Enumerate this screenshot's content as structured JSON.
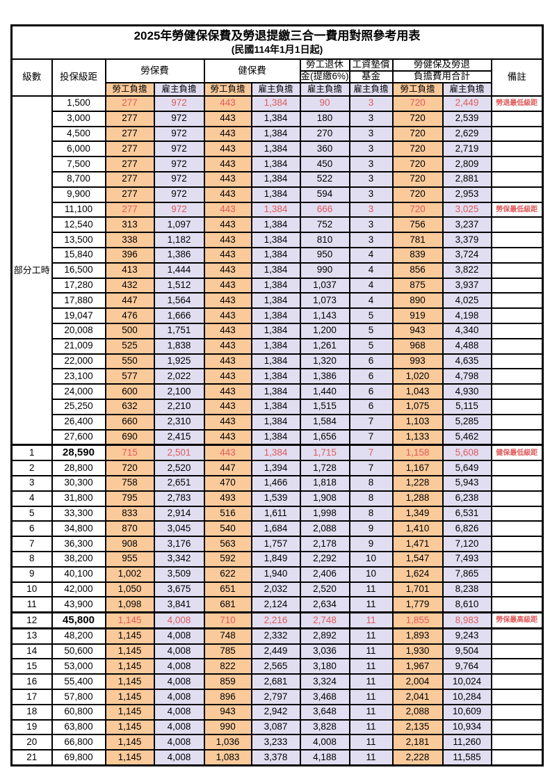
{
  "page": {
    "title": "2025年勞健保保費及勞退提繳三合一費用對照參考用表",
    "subtitle": "(民國114年1月1日起)"
  },
  "header": {
    "level": "級數",
    "bracket": "投保級距",
    "labor_insurance": "勞保費",
    "health_insurance": "健保費",
    "pension_line1": "勞工退休",
    "pension_line2": "金(提繳6%)",
    "wage_arrears_line1": "工資墊償",
    "wage_arrears_line2": "基金",
    "total_line1": "勞健保及勞退",
    "total_line2": "負擔費用合計",
    "remark": "備註",
    "employee_share": "勞工負擔",
    "employer_share": "雇主負擔"
  },
  "part_time_label": "部分工時",
  "colors": {
    "employee_bg": "#FACA9B",
    "employer_bg": "#E1DEF1",
    "highlight_text": "#E05A5A",
    "border": "#000000"
  },
  "rows": [
    {
      "level": "",
      "bracket": "1,500",
      "values": [
        "277",
        "972",
        "443",
        "1,384",
        "90",
        "3",
        "720",
        "2,449"
      ],
      "remark": "勞退最低級距",
      "highlight": true
    },
    {
      "level": "",
      "bracket": "3,000",
      "values": [
        "277",
        "972",
        "443",
        "1,384",
        "180",
        "3",
        "720",
        "2,539"
      ]
    },
    {
      "level": "",
      "bracket": "4,500",
      "values": [
        "277",
        "972",
        "443",
        "1,384",
        "270",
        "3",
        "720",
        "2,629"
      ]
    },
    {
      "level": "",
      "bracket": "6,000",
      "values": [
        "277",
        "972",
        "443",
        "1,384",
        "360",
        "3",
        "720",
        "2,719"
      ]
    },
    {
      "level": "",
      "bracket": "7,500",
      "values": [
        "277",
        "972",
        "443",
        "1,384",
        "450",
        "3",
        "720",
        "2,809"
      ]
    },
    {
      "level": "",
      "bracket": "8,700",
      "values": [
        "277",
        "972",
        "443",
        "1,384",
        "522",
        "3",
        "720",
        "2,881"
      ]
    },
    {
      "level": "",
      "bracket": "9,900",
      "values": [
        "277",
        "972",
        "443",
        "1,384",
        "594",
        "3",
        "720",
        "2,953"
      ]
    },
    {
      "level": "",
      "bracket": "11,100",
      "values": [
        "277",
        "972",
        "443",
        "1,384",
        "666",
        "3",
        "720",
        "3,025"
      ],
      "remark": "勞保最低級距",
      "highlight": true
    },
    {
      "level": "",
      "bracket": "12,540",
      "values": [
        "313",
        "1,097",
        "443",
        "1,384",
        "752",
        "3",
        "756",
        "3,237"
      ]
    },
    {
      "level": "",
      "bracket": "13,500",
      "values": [
        "338",
        "1,182",
        "443",
        "1,384",
        "810",
        "3",
        "781",
        "3,379"
      ]
    },
    {
      "level": "",
      "bracket": "15,840",
      "values": [
        "396",
        "1,386",
        "443",
        "1,384",
        "950",
        "4",
        "839",
        "3,724"
      ]
    },
    {
      "level": "",
      "bracket": "16,500",
      "values": [
        "413",
        "1,444",
        "443",
        "1,384",
        "990",
        "4",
        "856",
        "3,822"
      ]
    },
    {
      "level": "",
      "bracket": "17,280",
      "values": [
        "432",
        "1,512",
        "443",
        "1,384",
        "1,037",
        "4",
        "875",
        "3,937"
      ]
    },
    {
      "level": "",
      "bracket": "17,880",
      "values": [
        "447",
        "1,564",
        "443",
        "1,384",
        "1,073",
        "4",
        "890",
        "4,025"
      ]
    },
    {
      "level": "",
      "bracket": "19,047",
      "values": [
        "476",
        "1,666",
        "443",
        "1,384",
        "1,143",
        "5",
        "919",
        "4,198"
      ]
    },
    {
      "level": "",
      "bracket": "20,008",
      "values": [
        "500",
        "1,751",
        "443",
        "1,384",
        "1,200",
        "5",
        "943",
        "4,340"
      ]
    },
    {
      "level": "",
      "bracket": "21,009",
      "values": [
        "525",
        "1,838",
        "443",
        "1,384",
        "1,261",
        "5",
        "968",
        "4,488"
      ]
    },
    {
      "level": "",
      "bracket": "22,000",
      "values": [
        "550",
        "1,925",
        "443",
        "1,384",
        "1,320",
        "6",
        "993",
        "4,635"
      ]
    },
    {
      "level": "",
      "bracket": "23,100",
      "values": [
        "577",
        "2,022",
        "443",
        "1,384",
        "1,386",
        "6",
        "1,020",
        "4,798"
      ]
    },
    {
      "level": "",
      "bracket": "24,000",
      "values": [
        "600",
        "2,100",
        "443",
        "1,384",
        "1,440",
        "6",
        "1,043",
        "4,930"
      ]
    },
    {
      "level": "",
      "bracket": "25,250",
      "values": [
        "632",
        "2,210",
        "443",
        "1,384",
        "1,515",
        "6",
        "1,075",
        "5,115"
      ]
    },
    {
      "level": "",
      "bracket": "26,400",
      "values": [
        "660",
        "2,310",
        "443",
        "1,384",
        "1,584",
        "7",
        "1,103",
        "5,285"
      ]
    },
    {
      "level": "",
      "bracket": "27,600",
      "values": [
        "690",
        "2,415",
        "443",
        "1,384",
        "1,656",
        "7",
        "1,133",
        "5,462"
      ]
    },
    {
      "level": "1",
      "bracket": "28,590",
      "values": [
        "715",
        "2,501",
        "443",
        "1,384",
        "1,715",
        "7",
        "1,158",
        "5,608"
      ],
      "remark": "健保最低級距",
      "highlight": true,
      "bold_bracket": true
    },
    {
      "level": "2",
      "bracket": "28,800",
      "values": [
        "720",
        "2,520",
        "447",
        "1,394",
        "1,728",
        "7",
        "1,167",
        "5,649"
      ]
    },
    {
      "level": "3",
      "bracket": "30,300",
      "values": [
        "758",
        "2,651",
        "470",
        "1,466",
        "1,818",
        "8",
        "1,228",
        "5,943"
      ]
    },
    {
      "level": "4",
      "bracket": "31,800",
      "values": [
        "795",
        "2,783",
        "493",
        "1,539",
        "1,908",
        "8",
        "1,288",
        "6,238"
      ]
    },
    {
      "level": "5",
      "bracket": "33,300",
      "values": [
        "833",
        "2,914",
        "516",
        "1,611",
        "1,998",
        "8",
        "1,349",
        "6,531"
      ]
    },
    {
      "level": "6",
      "bracket": "34,800",
      "values": [
        "870",
        "3,045",
        "540",
        "1,684",
        "2,088",
        "9",
        "1,410",
        "6,826"
      ]
    },
    {
      "level": "7",
      "bracket": "36,300",
      "values": [
        "908",
        "3,176",
        "563",
        "1,757",
        "2,178",
        "9",
        "1,471",
        "7,120"
      ]
    },
    {
      "level": "8",
      "bracket": "38,200",
      "values": [
        "955",
        "3,342",
        "592",
        "1,849",
        "2,292",
        "10",
        "1,547",
        "7,493"
      ]
    },
    {
      "level": "9",
      "bracket": "40,100",
      "values": [
        "1,002",
        "3,509",
        "622",
        "1,940",
        "2,406",
        "10",
        "1,624",
        "7,865"
      ]
    },
    {
      "level": "10",
      "bracket": "42,000",
      "values": [
        "1,050",
        "3,675",
        "651",
        "2,032",
        "2,520",
        "11",
        "1,701",
        "8,238"
      ]
    },
    {
      "level": "11",
      "bracket": "43,900",
      "values": [
        "1,098",
        "3,841",
        "681",
        "2,124",
        "2,634",
        "11",
        "1,779",
        "8,610"
      ]
    },
    {
      "level": "12",
      "bracket": "45,800",
      "values": [
        "1,145",
        "4,008",
        "710",
        "2,216",
        "2,748",
        "11",
        "1,855",
        "8,983"
      ],
      "remark": "勞保最高級距",
      "highlight": true,
      "bold_bracket": true
    },
    {
      "level": "13",
      "bracket": "48,200",
      "values": [
        "1,145",
        "4,008",
        "748",
        "2,332",
        "2,892",
        "11",
        "1,893",
        "9,243"
      ]
    },
    {
      "level": "14",
      "bracket": "50,600",
      "values": [
        "1,145",
        "4,008",
        "785",
        "2,449",
        "3,036",
        "11",
        "1,930",
        "9,504"
      ]
    },
    {
      "level": "15",
      "bracket": "53,000",
      "values": [
        "1,145",
        "4,008",
        "822",
        "2,565",
        "3,180",
        "11",
        "1,967",
        "9,764"
      ]
    },
    {
      "level": "16",
      "bracket": "55,400",
      "values": [
        "1,145",
        "4,008",
        "859",
        "2,681",
        "3,324",
        "11",
        "2,004",
        "10,024"
      ]
    },
    {
      "level": "17",
      "bracket": "57,800",
      "values": [
        "1,145",
        "4,008",
        "896",
        "2,797",
        "3,468",
        "11",
        "2,041",
        "10,284"
      ]
    },
    {
      "level": "18",
      "bracket": "60,800",
      "values": [
        "1,145",
        "4,008",
        "943",
        "2,942",
        "3,648",
        "11",
        "2,088",
        "10,609"
      ]
    },
    {
      "level": "19",
      "bracket": "63,800",
      "values": [
        "1,145",
        "4,008",
        "990",
        "3,087",
        "3,828",
        "11",
        "2,135",
        "10,934"
      ]
    },
    {
      "level": "20",
      "bracket": "66,800",
      "values": [
        "1,145",
        "4,008",
        "1,036",
        "3,233",
        "4,008",
        "11",
        "2,181",
        "11,260"
      ]
    },
    {
      "level": "21",
      "bracket": "69,800",
      "values": [
        "1,145",
        "4,008",
        "1,083",
        "3,378",
        "4,188",
        "11",
        "2,228",
        "11,585"
      ]
    }
  ]
}
